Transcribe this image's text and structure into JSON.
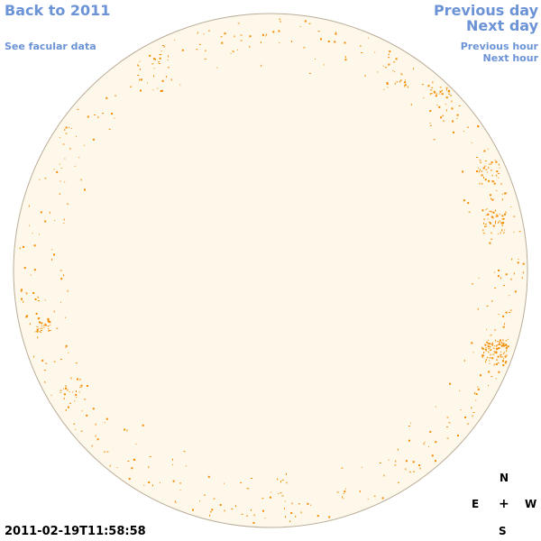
{
  "nav": {
    "back": "Back to 2011",
    "facular": "See facular data",
    "prev_day": "Previous day",
    "next_day": "Next day",
    "prev_hour": "Previous hour",
    "next_hour": "Next hour"
  },
  "timestamp": "2011-02-19T11:58:58",
  "compass": {
    "n": "N",
    "e": "E",
    "center": "+",
    "w": "W",
    "s": "S"
  },
  "colors": {
    "disk_fill": "#fef8ea",
    "disk_edge": "#b9ad98",
    "spot": "#f28b00",
    "link": "#6b93d6"
  }
}
